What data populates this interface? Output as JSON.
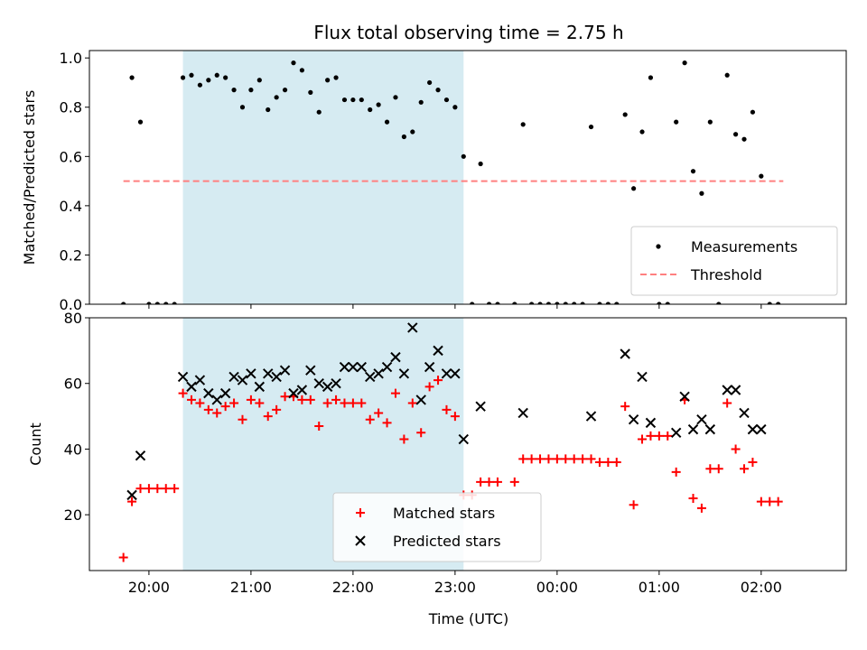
{
  "chart_data": [
    {
      "type": "scatter",
      "title": "Flux total observing time = 2.75 h",
      "ylabel": "Matched/Predicted stars",
      "xlim": [
        "19:25",
        "02:50"
      ],
      "ylim": [
        0,
        1.03
      ],
      "yticks": [
        "0.0",
        "0.2",
        "0.4",
        "0.6",
        "0.8",
        "1.0"
      ],
      "xticks": [
        "20:00",
        "21:00",
        "22:00",
        "23:00",
        "00:00",
        "01:00",
        "02:00"
      ],
      "shaded_span": [
        "20:20",
        "23:05"
      ],
      "shade_color": "#add8e6",
      "legend": {
        "position": "lower-right",
        "entries": [
          "Measurements",
          "Threshold"
        ]
      },
      "threshold": {
        "label": "Threshold",
        "value": 0.5,
        "x_range": [
          "19:45",
          "02:13"
        ],
        "color": "#ff8080"
      },
      "series": [
        {
          "name": "Measurements",
          "marker": "dot",
          "color": "#000000",
          "points": [
            [
              "19:45",
              0
            ],
            [
              "19:50",
              0.92
            ],
            [
              "19:55",
              0.74
            ],
            [
              "20:00",
              0
            ],
            [
              "20:05",
              0
            ],
            [
              "20:10",
              0
            ],
            [
              "20:15",
              0
            ],
            [
              "20:20",
              0.92
            ],
            [
              "20:25",
              0.93
            ],
            [
              "20:30",
              0.89
            ],
            [
              "20:35",
              0.91
            ],
            [
              "20:40",
              0.93
            ],
            [
              "20:45",
              0.92
            ],
            [
              "20:50",
              0.87
            ],
            [
              "20:55",
              0.8
            ],
            [
              "21:00",
              0.87
            ],
            [
              "21:05",
              0.91
            ],
            [
              "21:10",
              0.79
            ],
            [
              "21:15",
              0.84
            ],
            [
              "21:20",
              0.87
            ],
            [
              "21:25",
              0.98
            ],
            [
              "21:30",
              0.95
            ],
            [
              "21:35",
              0.86
            ],
            [
              "21:40",
              0.78
            ],
            [
              "21:45",
              0.91
            ],
            [
              "21:50",
              0.92
            ],
            [
              "21:55",
              0.83
            ],
            [
              "22:00",
              0.83
            ],
            [
              "22:05",
              0.83
            ],
            [
              "22:10",
              0.79
            ],
            [
              "22:15",
              0.81
            ],
            [
              "22:20",
              0.74
            ],
            [
              "22:25",
              0.84
            ],
            [
              "22:30",
              0.68
            ],
            [
              "22:35",
              0.7
            ],
            [
              "22:40",
              0.82
            ],
            [
              "22:45",
              0.9
            ],
            [
              "22:50",
              0.87
            ],
            [
              "22:55",
              0.83
            ],
            [
              "23:00",
              0.8
            ],
            [
              "23:05",
              0.6
            ],
            [
              "23:10",
              0
            ],
            [
              "23:15",
              0.57
            ],
            [
              "23:20",
              0
            ],
            [
              "23:25",
              0
            ],
            [
              "23:35",
              0
            ],
            [
              "23:40",
              0.73
            ],
            [
              "23:45",
              0
            ],
            [
              "23:50",
              0
            ],
            [
              "23:55",
              0
            ],
            [
              "00:00",
              0
            ],
            [
              "00:05",
              0
            ],
            [
              "00:10",
              0
            ],
            [
              "00:15",
              0
            ],
            [
              "00:20",
              0.72
            ],
            [
              "00:25",
              0
            ],
            [
              "00:30",
              0
            ],
            [
              "00:35",
              0
            ],
            [
              "00:40",
              0.77
            ],
            [
              "00:45",
              0.47
            ],
            [
              "00:50",
              0.7
            ],
            [
              "00:55",
              0.92
            ],
            [
              "01:00",
              0
            ],
            [
              "01:05",
              0
            ],
            [
              "01:10",
              0.74
            ],
            [
              "01:15",
              0.98
            ],
            [
              "01:20",
              0.54
            ],
            [
              "01:25",
              0.45
            ],
            [
              "01:30",
              0.74
            ],
            [
              "01:35",
              0
            ],
            [
              "01:40",
              0.93
            ],
            [
              "01:45",
              0.69
            ],
            [
              "01:50",
              0.67
            ],
            [
              "01:55",
              0.78
            ],
            [
              "02:00",
              0.52
            ],
            [
              "02:05",
              0
            ],
            [
              "02:10",
              0
            ]
          ]
        }
      ]
    },
    {
      "type": "scatter",
      "xlabel": "Time (UTC)",
      "ylabel": "Count",
      "xlim": [
        "19:25",
        "02:50"
      ],
      "ylim": [
        3,
        80
      ],
      "yticks": [
        "20",
        "40",
        "60",
        "80"
      ],
      "xticks": [
        "20:00",
        "21:00",
        "22:00",
        "23:00",
        "00:00",
        "01:00",
        "02:00"
      ],
      "shaded_span": [
        "20:20",
        "23:05"
      ],
      "shade_color": "#add8e6",
      "legend": {
        "position": "lower-center",
        "entries": [
          "Matched stars",
          "Predicted stars"
        ]
      },
      "series": [
        {
          "name": "Matched stars",
          "marker": "plus",
          "color": "#ff0000",
          "points": [
            [
              "19:45",
              7
            ],
            [
              "19:50",
              24
            ],
            [
              "19:55",
              28
            ],
            [
              "20:00",
              28
            ],
            [
              "20:05",
              28
            ],
            [
              "20:10",
              28
            ],
            [
              "20:15",
              28
            ],
            [
              "20:20",
              57
            ],
            [
              "20:25",
              55
            ],
            [
              "20:30",
              54
            ],
            [
              "20:35",
              52
            ],
            [
              "20:40",
              51
            ],
            [
              "20:45",
              53
            ],
            [
              "20:50",
              54
            ],
            [
              "20:55",
              49
            ],
            [
              "21:00",
              55
            ],
            [
              "21:05",
              54
            ],
            [
              "21:10",
              50
            ],
            [
              "21:15",
              52
            ],
            [
              "21:20",
              56
            ],
            [
              "21:25",
              56
            ],
            [
              "21:30",
              55
            ],
            [
              "21:35",
              55
            ],
            [
              "21:40",
              47
            ],
            [
              "21:45",
              54
            ],
            [
              "21:50",
              55
            ],
            [
              "21:55",
              54
            ],
            [
              "22:00",
              54
            ],
            [
              "22:05",
              54
            ],
            [
              "22:10",
              49
            ],
            [
              "22:15",
              51
            ],
            [
              "22:20",
              48
            ],
            [
              "22:25",
              57
            ],
            [
              "22:30",
              43
            ],
            [
              "22:35",
              54
            ],
            [
              "22:40",
              45
            ],
            [
              "22:45",
              59
            ],
            [
              "22:50",
              61
            ],
            [
              "22:55",
              52
            ],
            [
              "23:00",
              50
            ],
            [
              "23:05",
              26
            ],
            [
              "23:10",
              26
            ],
            [
              "23:15",
              30
            ],
            [
              "23:20",
              30
            ],
            [
              "23:25",
              30
            ],
            [
              "23:35",
              30
            ],
            [
              "23:40",
              37
            ],
            [
              "23:45",
              37
            ],
            [
              "23:50",
              37
            ],
            [
              "23:55",
              37
            ],
            [
              "00:00",
              37
            ],
            [
              "00:05",
              37
            ],
            [
              "00:10",
              37
            ],
            [
              "00:15",
              37
            ],
            [
              "00:20",
              37
            ],
            [
              "00:25",
              36
            ],
            [
              "00:30",
              36
            ],
            [
              "00:35",
              36
            ],
            [
              "00:40",
              53
            ],
            [
              "00:45",
              23
            ],
            [
              "00:50",
              43
            ],
            [
              "00:55",
              44
            ],
            [
              "01:00",
              44
            ],
            [
              "01:05",
              44
            ],
            [
              "01:10",
              33
            ],
            [
              "01:15",
              55
            ],
            [
              "01:20",
              25
            ],
            [
              "01:25",
              22
            ],
            [
              "01:30",
              34
            ],
            [
              "01:35",
              34
            ],
            [
              "01:40",
              54
            ],
            [
              "01:45",
              40
            ],
            [
              "01:50",
              34
            ],
            [
              "01:55",
              36
            ],
            [
              "02:00",
              24
            ],
            [
              "02:05",
              24
            ],
            [
              "02:10",
              24
            ]
          ]
        },
        {
          "name": "Predicted stars",
          "marker": "x",
          "color": "#000000",
          "points": [
            [
              "19:50",
              26
            ],
            [
              "19:55",
              38
            ],
            [
              "20:20",
              62
            ],
            [
              "20:25",
              59
            ],
            [
              "20:30",
              61
            ],
            [
              "20:35",
              57
            ],
            [
              "20:40",
              55
            ],
            [
              "20:45",
              57
            ],
            [
              "20:50",
              62
            ],
            [
              "20:55",
              61
            ],
            [
              "21:00",
              63
            ],
            [
              "21:05",
              59
            ],
            [
              "21:10",
              63
            ],
            [
              "21:15",
              62
            ],
            [
              "21:20",
              64
            ],
            [
              "21:25",
              57
            ],
            [
              "21:30",
              58
            ],
            [
              "21:35",
              64
            ],
            [
              "21:40",
              60
            ],
            [
              "21:45",
              59
            ],
            [
              "21:50",
              60
            ],
            [
              "21:55",
              65
            ],
            [
              "22:00",
              65
            ],
            [
              "22:05",
              65
            ],
            [
              "22:10",
              62
            ],
            [
              "22:15",
              63
            ],
            [
              "22:20",
              65
            ],
            [
              "22:25",
              68
            ],
            [
              "22:30",
              63
            ],
            [
              "22:35",
              77
            ],
            [
              "22:40",
              55
            ],
            [
              "22:45",
              65
            ],
            [
              "22:50",
              70
            ],
            [
              "22:55",
              63
            ],
            [
              "23:00",
              63
            ],
            [
              "23:05",
              43
            ],
            [
              "23:15",
              53
            ],
            [
              "23:40",
              51
            ],
            [
              "00:20",
              50
            ],
            [
              "00:40",
              69
            ],
            [
              "00:45",
              49
            ],
            [
              "00:50",
              62
            ],
            [
              "00:55",
              48
            ],
            [
              "01:10",
              45
            ],
            [
              "01:15",
              56
            ],
            [
              "01:20",
              46
            ],
            [
              "01:25",
              49
            ],
            [
              "01:30",
              46
            ],
            [
              "01:40",
              58
            ],
            [
              "01:45",
              58
            ],
            [
              "01:50",
              51
            ],
            [
              "01:55",
              46
            ],
            [
              "02:00",
              46
            ]
          ]
        }
      ]
    }
  ]
}
